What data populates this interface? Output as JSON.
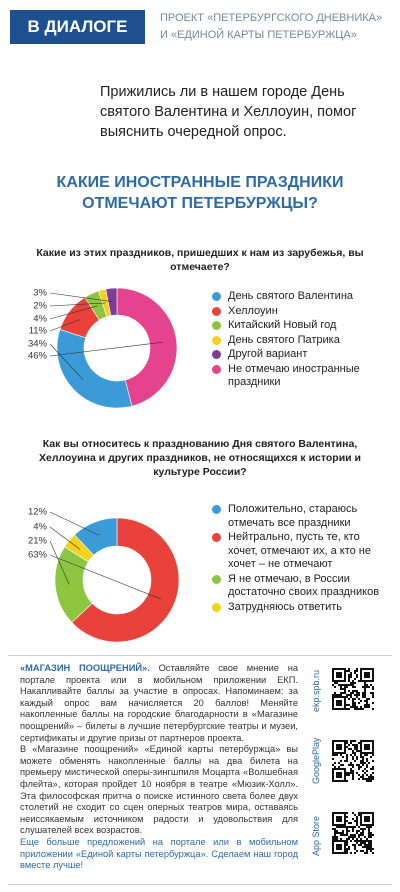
{
  "header": {
    "badge": "В ДИАЛОГЕ",
    "project": "ПРОЕКТ «ПЕТЕРБУРГСКОГО ДНЕВНИКА» И «ЕДИНОЙ КАРТЫ ПЕТЕРБУРЖЦА»"
  },
  "intro": "Прижились ли в нашем городе День святого Валентина и Хеллоуин, помог выяснить очередной опрос.",
  "title": "КАКИЕ ИНОСТРАННЫЕ ПРАЗДНИКИ ОТМЕЧАЮТ ПЕТЕРБУРЖЦЫ?",
  "chart_data": [
    {
      "type": "donut",
      "title": "Какие из этих праздников, пришедших к нам из зарубежья, вы отмечаете?",
      "categories": [
        "День святого Валентина",
        "Хеллоуин",
        "Китайский Новый год",
        "День святого Патрика",
        "Другой вариант",
        "Не отмечаю иностранные праздники"
      ],
      "values": [
        34,
        11,
        4,
        2,
        3,
        46
      ],
      "value_labels": [
        "34%",
        "11%",
        "4%",
        "2%",
        "3%",
        "46%"
      ],
      "colors": [
        "#3b9bd8",
        "#e8423b",
        "#8cc540",
        "#f5d01c",
        "#7d3c96",
        "#e5438e"
      ]
    },
    {
      "type": "donut",
      "title": "Как вы относитесь к празднованию Дня святого Валентина, Хеллоуина и других праздников, не относящихся к истории и культуре России?",
      "categories": [
        "Положительно, стараюсь отмечать все праздники",
        "Нейтрально, пусть те, кто хочет, отмечают их, а кто не хочет – не отмечают",
        "Я не отмечаю, в России достаточно своих праздников",
        "Затрудняюсь ответить"
      ],
      "values": [
        12,
        63,
        21,
        4
      ],
      "value_labels": [
        "12%",
        "63%",
        "21%",
        "4%"
      ],
      "colors": [
        "#3b9bd8",
        "#e8423b",
        "#8cc540",
        "#f5d01c"
      ]
    }
  ],
  "footer": {
    "lead": "«МАГАЗИН ПООЩРЕНИЙ».",
    "p1": "Оставляйте свое мнение на портале проекта или в мобильном приложении ЕКП. Накапливайте баллы за участие в опросах. Напоминаем: за каждый опрос вам начисляется 20 баллов! Меняйте накопленные баллы на городские благодарности в «Магазине поощрений» – билеты в лучшие петербургские театры и музеи, сертификаты и другие призы от партнеров проекта.",
    "p2": "В «Магазине поощрений» «Единой карты петербуржца» вы можете обменять накопленные баллы на два билета на премьеру мистической оперы-зингшпиля Моцарта «Волшебная флейта», которая пройдет 10 ноября в театре «Мюзик-Холл». Эта философская притча о поиске истинного света более двух столетий не сходит со сцен оперных театров мира, оставаясь неиссякаемым источником радости и удовольствия для слушателей всех возрастов.",
    "p3": "Еще больше предложений на портале или в мобильном приложении «Единой карты петербуржца». Сделаем наш город вместе лучше!"
  },
  "stores": [
    "ekp.spb.ru",
    "GooglePlay",
    "App Store"
  ]
}
